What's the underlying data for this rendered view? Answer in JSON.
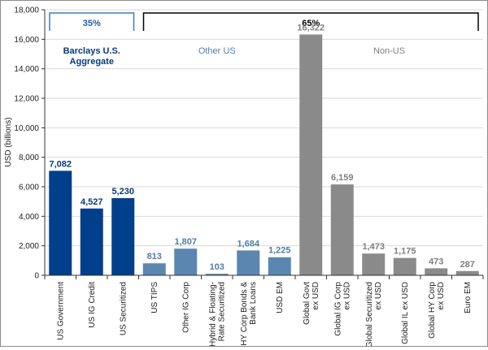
{
  "chart_data": {
    "type": "bar",
    "ylabel": "USD (billions)",
    "ylim": [
      0,
      18000
    ],
    "yticks": [
      "0",
      "2,000",
      "4,000",
      "6,000",
      "8,000",
      "10,000",
      "12,000",
      "14,000",
      "16,000",
      "18,000"
    ],
    "ytick_values": [
      0,
      2000,
      4000,
      6000,
      8000,
      10000,
      12000,
      14000,
      16000,
      18000
    ],
    "grid": "horizontal",
    "categories": [
      [
        "US Government"
      ],
      [
        "US IG Credit"
      ],
      [
        "US Securitized"
      ],
      [
        "US TIPS"
      ],
      [
        "Other IG Corp"
      ],
      [
        "Hybrid & Floating-",
        "Rate Securitized"
      ],
      [
        "HY Corp Bonds &",
        "Bank Loans"
      ],
      [
        "USD EM"
      ],
      [
        "Global Govt",
        "ex USD"
      ],
      [
        "Global IG Corp",
        "ex USD"
      ],
      [
        "Global Securitized",
        "ex USD"
      ],
      [
        "Global IL ex USD"
      ],
      [
        "Global HY Corp",
        "ex USD"
      ],
      [
        "Euro EM"
      ]
    ],
    "values": [
      7082,
      4527,
      5230,
      813,
      1807,
      103,
      1684,
      1225,
      16322,
      6159,
      1473,
      1175,
      473,
      287
    ],
    "value_labels": [
      "7,082",
      "4,527",
      "5,230",
      "813",
      "1,807",
      "103",
      "1,684",
      "1,225",
      "16,322",
      "6,159",
      "1,473",
      "1,175",
      "473",
      "287"
    ],
    "group_of_bar": [
      0,
      0,
      0,
      1,
      1,
      1,
      1,
      1,
      2,
      2,
      2,
      2,
      2,
      2
    ],
    "groups": [
      {
        "label": [
          "Barclays U.S.",
          "Aggregate"
        ],
        "color": "#003f8a",
        "label_color": "#0b3a78",
        "value_label_color": "#0b3a78"
      },
      {
        "label": [
          "Other US"
        ],
        "color": "#5b86b0",
        "label_color": "#4f7ea8",
        "value_label_color": "#4f7ea8"
      },
      {
        "label": [
          "Non-US"
        ],
        "color": "#8a8a8a",
        "label_color": "#7f7f7f",
        "value_label_color": "#7f7f7f"
      }
    ],
    "brackets": [
      {
        "label": "35%",
        "from_bar": 0,
        "to_bar": 2,
        "color": "#3a7cc2",
        "label_color": "#1f5fa8"
      },
      {
        "label": "65%",
        "from_bar": 3,
        "to_bar": 13,
        "color": "#000000",
        "label_color": "#000000"
      }
    ]
  }
}
